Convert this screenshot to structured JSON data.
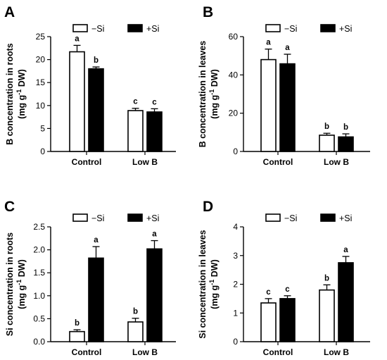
{
  "legend": {
    "series": [
      "−Si",
      "+Si"
    ]
  },
  "chart_data": [
    {
      "panel": "A",
      "type": "bar",
      "ylabel_line1": "B concentration in roots",
      "ylabel_line2_pre": "(mg g",
      "ylabel_sup": "-1",
      "ylabel_line2_post": " DW)",
      "categories": [
        "Control",
        "Low B"
      ],
      "ylim": [
        0,
        25
      ],
      "yticks": [
        0,
        5,
        10,
        15,
        20,
        25
      ],
      "series": [
        {
          "name": "−Si",
          "fill": "#ffffff",
          "values": [
            21.7,
            8.9
          ],
          "errors": [
            1.4,
            0.5
          ],
          "letters": [
            "a",
            "c"
          ]
        },
        {
          "name": "+Si",
          "fill": "#000000",
          "values": [
            18.0,
            8.6
          ],
          "errors": [
            0.4,
            0.7
          ],
          "letters": [
            "b",
            "c"
          ]
        }
      ]
    },
    {
      "panel": "B",
      "type": "bar",
      "ylabel_line1": "B concentration in leaves",
      "ylabel_line2_pre": "(mg g",
      "ylabel_sup": "-1",
      "ylabel_line2_post": " DW)",
      "categories": [
        "Control",
        "Low B"
      ],
      "ylim": [
        0,
        60
      ],
      "yticks": [
        0,
        20,
        40,
        60
      ],
      "series": [
        {
          "name": "−Si",
          "fill": "#ffffff",
          "values": [
            48.0,
            8.5
          ],
          "errors": [
            5.5,
            1.0
          ],
          "letters": [
            "a",
            "b"
          ]
        },
        {
          "name": "+Si",
          "fill": "#000000",
          "values": [
            45.8,
            7.6
          ],
          "errors": [
            5.0,
            1.6
          ],
          "letters": [
            "a",
            "b"
          ]
        }
      ]
    },
    {
      "panel": "C",
      "type": "bar",
      "ylabel_line1": "Si concentration in roots",
      "ylabel_line2_pre": "(mg g",
      "ylabel_sup": "-1",
      "ylabel_line2_post": " DW)",
      "categories": [
        "Control",
        "Low B"
      ],
      "ylim": [
        0,
        2.5
      ],
      "yticks": [
        0.0,
        0.5,
        1.0,
        1.5,
        2.0,
        2.5
      ],
      "tick_format": "0.0",
      "series": [
        {
          "name": "−Si",
          "fill": "#ffffff",
          "values": [
            0.22,
            0.43
          ],
          "errors": [
            0.04,
            0.08
          ],
          "letters": [
            "b",
            "b"
          ]
        },
        {
          "name": "+Si",
          "fill": "#000000",
          "values": [
            1.82,
            2.02
          ],
          "errors": [
            0.25,
            0.18
          ],
          "letters": [
            "a",
            "a"
          ]
        }
      ]
    },
    {
      "panel": "D",
      "type": "bar",
      "ylabel_line1": "Si concentration in leaves",
      "ylabel_line2_pre": "(mg g",
      "ylabel_sup": "-1",
      "ylabel_line2_post": " DW)",
      "categories": [
        "Control",
        "Low B"
      ],
      "ylim": [
        0,
        4
      ],
      "yticks": [
        0,
        1,
        2,
        3,
        4
      ],
      "series": [
        {
          "name": "−Si",
          "fill": "#ffffff",
          "values": [
            1.35,
            1.8
          ],
          "errors": [
            0.15,
            0.18
          ],
          "letters": [
            "c",
            "b"
          ]
        },
        {
          "name": "+Si",
          "fill": "#000000",
          "values": [
            1.5,
            2.75
          ],
          "errors": [
            0.1,
            0.22
          ],
          "letters": [
            "c",
            "a"
          ]
        }
      ]
    }
  ]
}
